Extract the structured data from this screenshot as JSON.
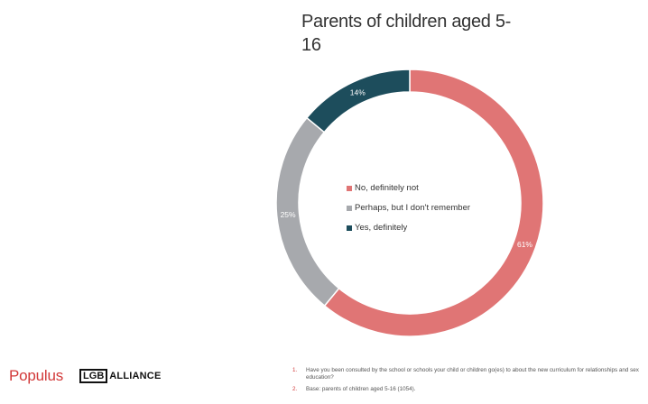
{
  "chart_data": {
    "type": "pie",
    "variant": "donut",
    "title": "Parents of children aged 5-16",
    "title_lines": [
      "Parents of children aged 5-",
      "16"
    ],
    "series": [
      {
        "name": "No, definitely not",
        "value": 61,
        "label": "61%",
        "color": "#e07575"
      },
      {
        "name": "Perhaps, but I don't remember",
        "value": 25,
        "label": "25%",
        "color": "#a7a9ad"
      },
      {
        "name": "Yes, definitely",
        "value": 14,
        "label": "14%",
        "color": "#1d4d5c"
      }
    ],
    "legend_placement": "center"
  },
  "brand": {
    "populus": "Populus",
    "lgb": "LGB",
    "alliance": "ALLIANCE"
  },
  "footnotes": [
    {
      "num": "1.",
      "text": "Have you been consulted by the school or schools your child or children go(es) to about the new curriculum for relationships and sex education?"
    },
    {
      "num": "2.",
      "text": "Base: parents of children aged 5-16 (1054)."
    }
  ]
}
